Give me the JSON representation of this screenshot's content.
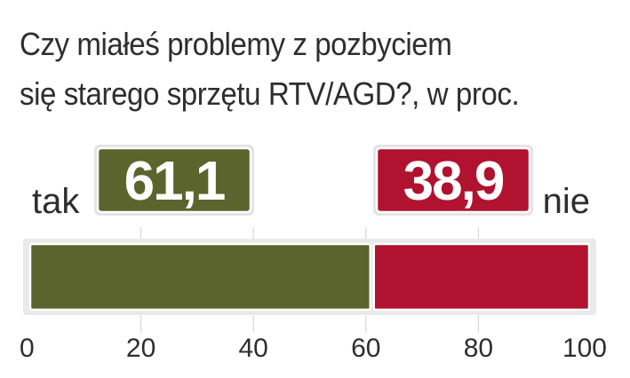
{
  "chart_data": {
    "type": "bar",
    "stacked": true,
    "orientation": "horizontal",
    "title_line1": "Czy miałeś problemy z pozbyciem",
    "title_line2": "się starego sprzętu RTV/AGD?, w proc.",
    "series": [
      {
        "name": "tak",
        "value": 61.1,
        "label": "61,1",
        "color": "#5c642d"
      },
      {
        "name": "nie",
        "value": 38.9,
        "label": "38,9",
        "color": "#b0122f"
      }
    ],
    "xlim": [
      0,
      100
    ],
    "ticks": [
      {
        "value": 0,
        "label": "0"
      },
      {
        "value": 20,
        "label": "20"
      },
      {
        "value": 40,
        "label": "40"
      },
      {
        "value": 60,
        "label": "60"
      },
      {
        "value": 80,
        "label": "80"
      },
      {
        "value": 100,
        "label": "100"
      }
    ],
    "grid": true
  }
}
